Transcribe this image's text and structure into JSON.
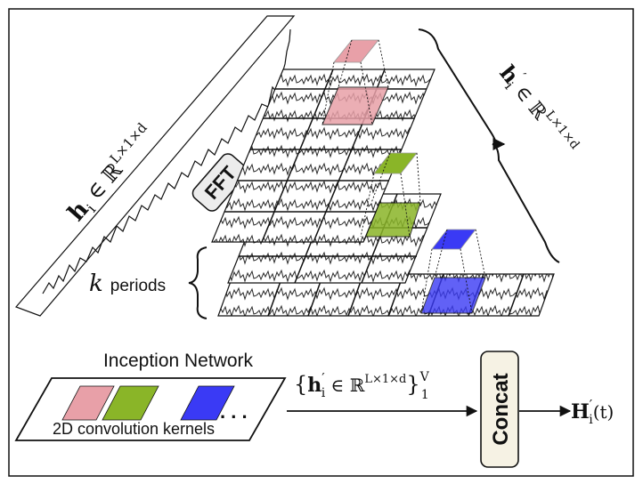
{
  "labels": {
    "fft": "FFT",
    "k_var": "k",
    "periods": "periods",
    "inception_title": "Inception Network",
    "kernels_caption": "2D convolution kernels",
    "ellipsis": ". . .",
    "concat": "Concat",
    "h_input_bold": "h",
    "h_input_sub": "i",
    "h_input_rest": " ∈ ℝ",
    "h_input_sup": "L×1×d",
    "h_prime_bold": "h",
    "h_prime_mark": "′",
    "h_prime_sub": "i",
    "h_prime_rest": " ∈ ℝ",
    "h_prime_sup": "L×1×d",
    "set_open": "{",
    "set_bold": "h",
    "set_mark": "′",
    "set_sub": "i",
    "set_rest": " ∈ ℝ",
    "set_sup": "L×1×d",
    "set_close": "}",
    "set_upper": "V",
    "set_lower": "1",
    "output_bold": "H",
    "output_mark": "′",
    "output_sub": "i",
    "output_rest": "(t)"
  },
  "colors": {
    "kernel_pink": "#e8a0a8",
    "kernel_green": "#8ab528",
    "kernel_blue": "#3a3af5",
    "fft_box_fill": "#ececec",
    "concat_box_fill": "#f6f2e4",
    "line": "#111111"
  }
}
